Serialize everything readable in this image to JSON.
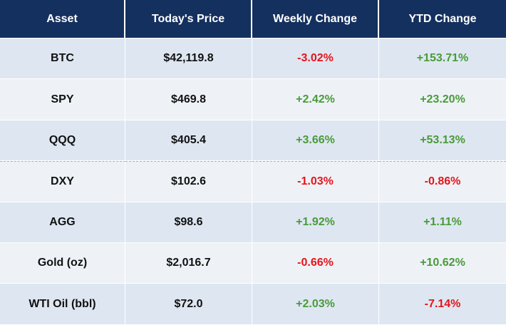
{
  "table": {
    "headers": [
      "Asset",
      "Today's Price",
      "Weekly Change",
      "YTD Change"
    ],
    "rows": [
      {
        "asset": "BTC",
        "price": "$42,119.8",
        "weekly": "-3.02%",
        "ytd": "+153.71%"
      },
      {
        "asset": "SPY",
        "price": "$469.8",
        "weekly": "+2.42%",
        "ytd": "+23.20%"
      },
      {
        "asset": "QQQ",
        "price": "$405.4",
        "weekly": "+3.66%",
        "ytd": "+53.13%"
      },
      {
        "asset": "DXY",
        "price": "$102.6",
        "weekly": "-1.03%",
        "ytd": "-0.86%"
      },
      {
        "asset": "AGG",
        "price": "$98.6",
        "weekly": "+1.92%",
        "ytd": "+1.11%"
      },
      {
        "asset": "Gold (oz)",
        "price": "$2,016.7",
        "weekly": "-0.66%",
        "ytd": "+10.62%"
      },
      {
        "asset": "WTI Oil (bbl)",
        "price": "$72.0",
        "weekly": "+2.03%",
        "ytd": "-7.14%"
      }
    ]
  },
  "colors": {
    "header_bg": "#14305e",
    "row_alt_1": "#dee7f1",
    "row_alt_2": "#eef2f6",
    "negative": "#e5141b",
    "positive": "#4a9a3a"
  }
}
